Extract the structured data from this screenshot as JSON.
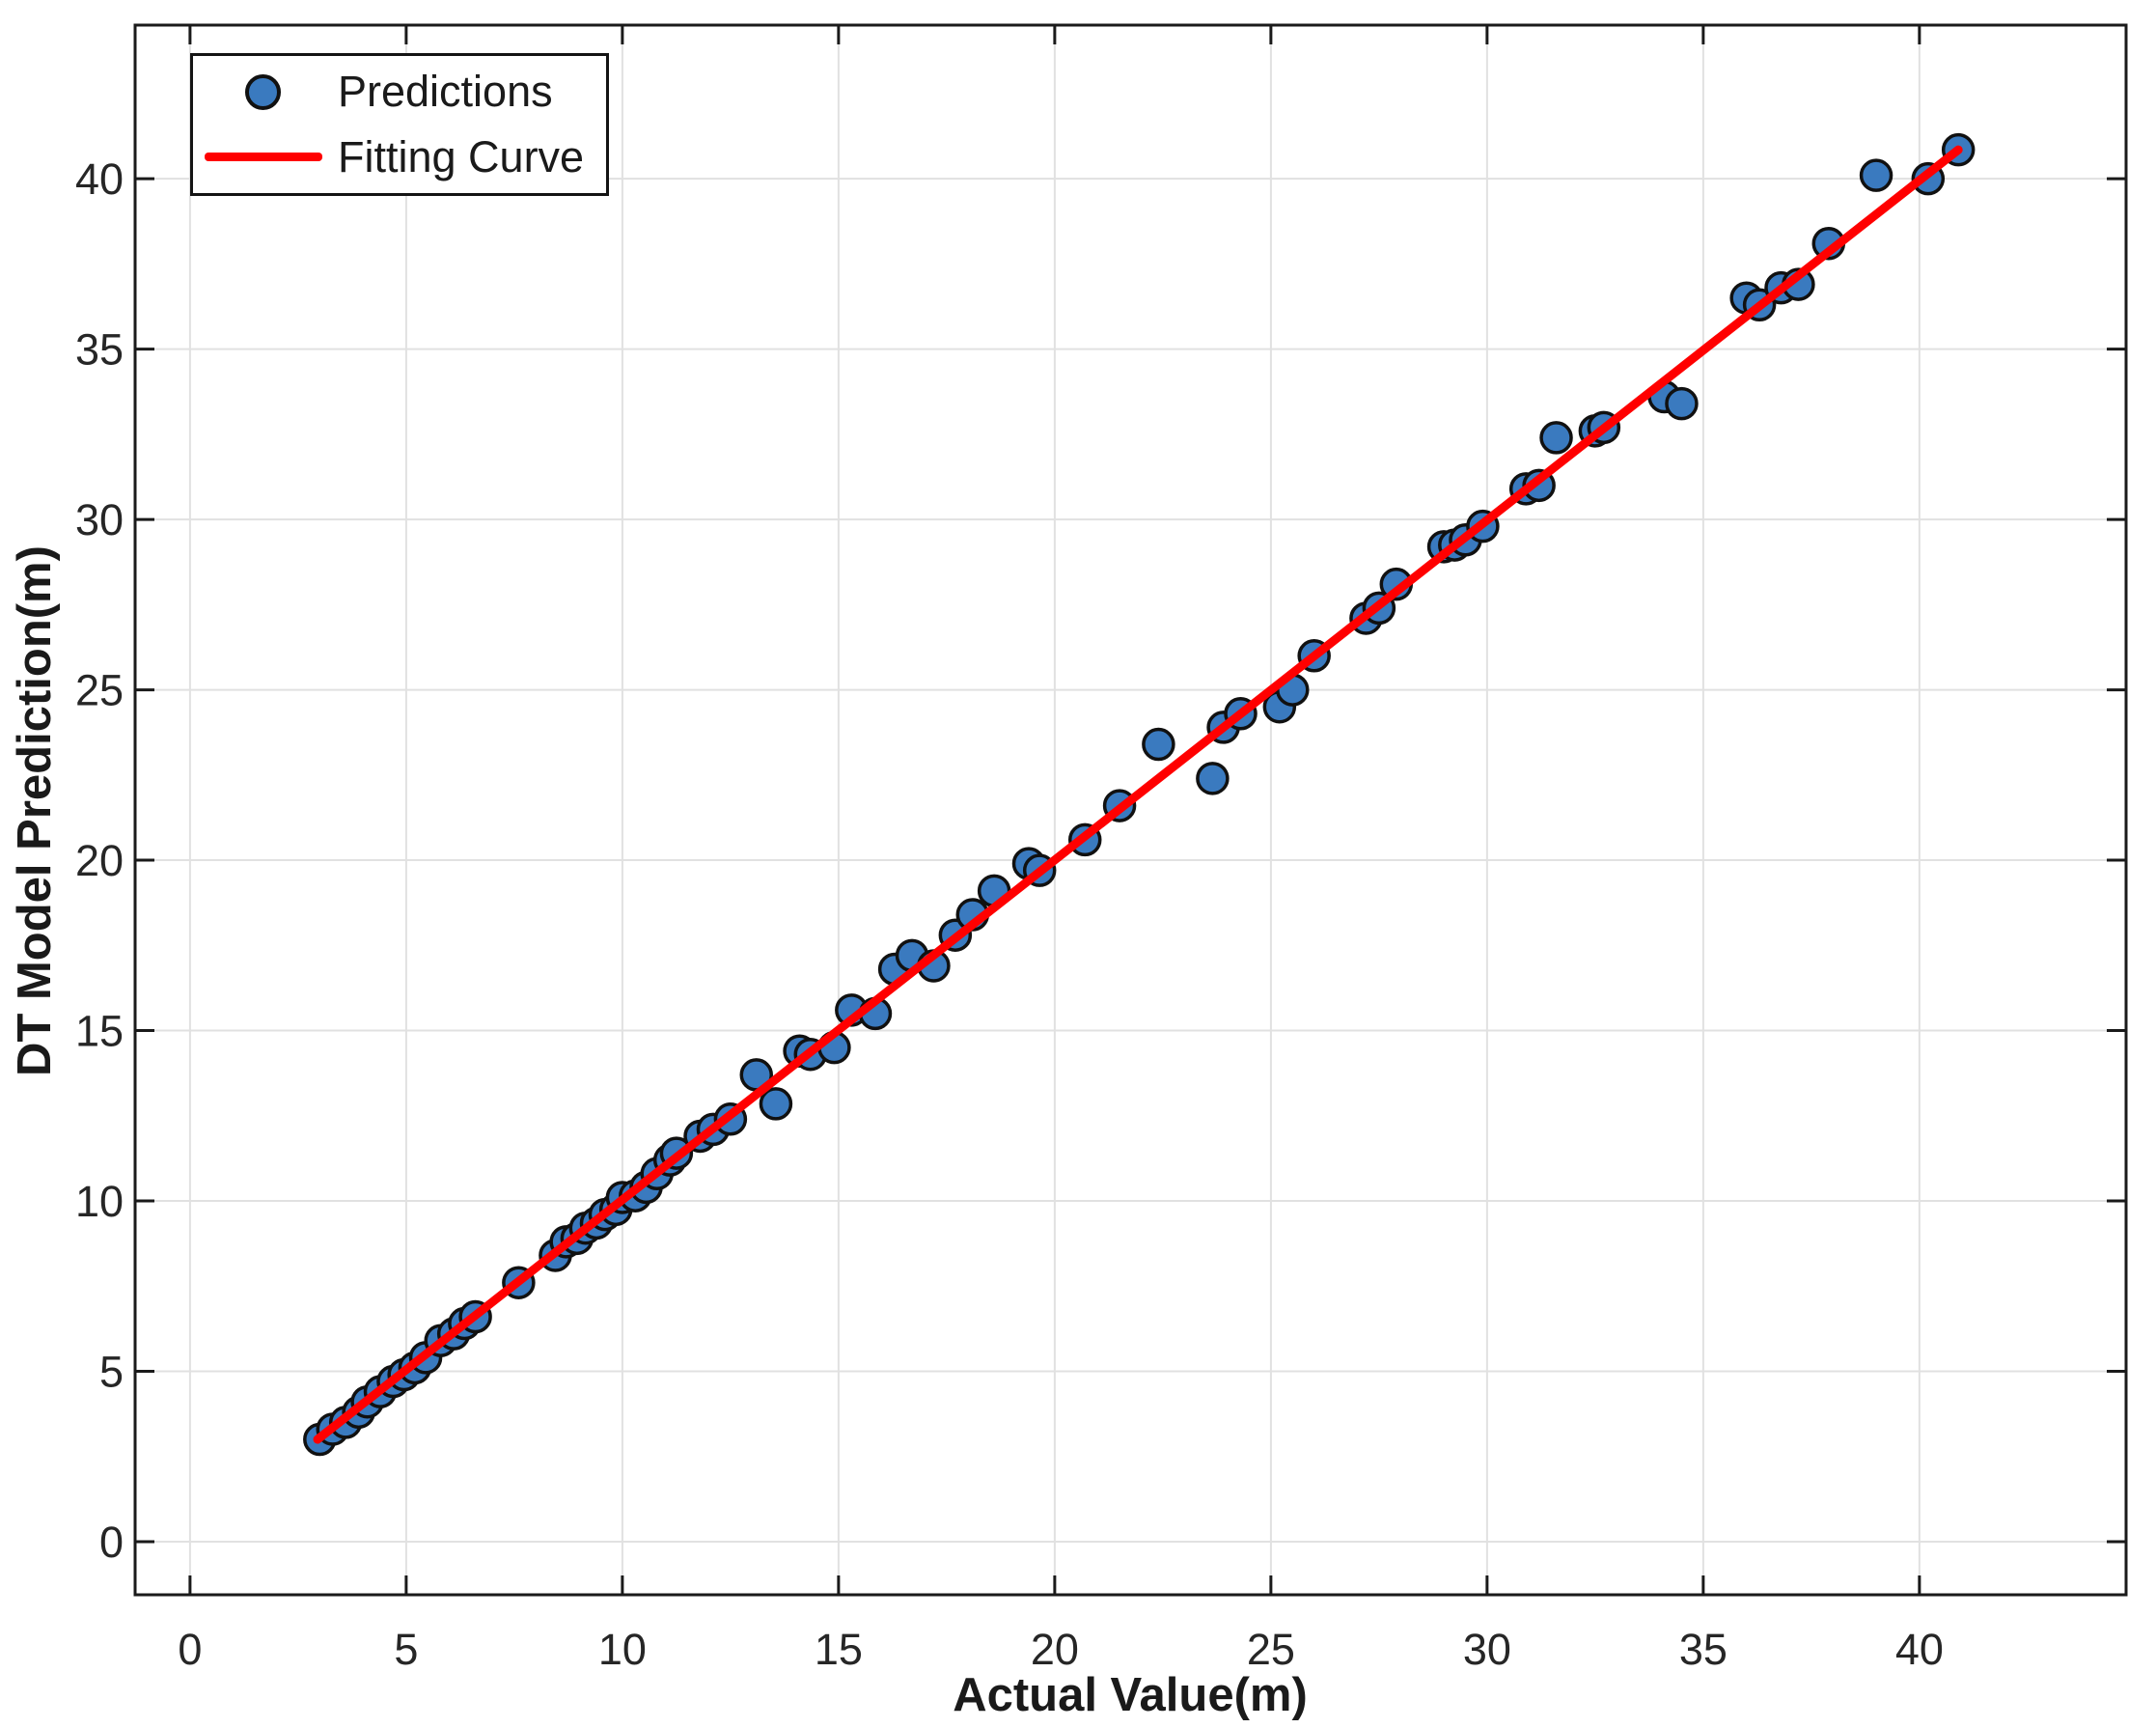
{
  "chart_data": {
    "type": "scatter",
    "title": "",
    "xlabel": "Actual Value(m)",
    "ylabel": "DT Model Prediction(m)",
    "xlim": [
      -1.27,
      44.78
    ],
    "ylim": [
      -1.56,
      44.51
    ],
    "xticks": [
      0,
      5,
      10,
      15,
      20,
      25,
      30,
      35,
      40
    ],
    "yticks": [
      0,
      5,
      10,
      15,
      20,
      25,
      30,
      35,
      40
    ],
    "grid": true,
    "legend_position": "top-left",
    "series": [
      {
        "name": "Predictions",
        "type": "scatter",
        "points": [
          [
            3.0,
            3.0
          ],
          [
            3.3,
            3.3
          ],
          [
            3.6,
            3.5
          ],
          [
            3.9,
            3.8
          ],
          [
            4.1,
            4.1
          ],
          [
            4.4,
            4.4
          ],
          [
            4.7,
            4.7
          ],
          [
            4.95,
            4.9
          ],
          [
            5.2,
            5.1
          ],
          [
            5.45,
            5.4
          ],
          [
            5.8,
            5.9
          ],
          [
            6.1,
            6.1
          ],
          [
            6.35,
            6.4
          ],
          [
            6.6,
            6.6
          ],
          [
            7.6,
            7.6
          ],
          [
            8.45,
            8.4
          ],
          [
            8.7,
            8.8
          ],
          [
            8.95,
            8.9
          ],
          [
            9.15,
            9.2
          ],
          [
            9.4,
            9.35
          ],
          [
            9.6,
            9.6
          ],
          [
            9.85,
            9.75
          ],
          [
            10.0,
            10.1
          ],
          [
            10.3,
            10.15
          ],
          [
            10.55,
            10.4
          ],
          [
            10.8,
            10.8
          ],
          [
            11.1,
            11.2
          ],
          [
            11.25,
            11.4
          ],
          [
            11.8,
            11.9
          ],
          [
            12.1,
            12.1
          ],
          [
            12.5,
            12.4
          ],
          [
            13.1,
            13.7
          ],
          [
            13.55,
            12.85
          ],
          [
            14.1,
            14.4
          ],
          [
            14.35,
            14.3
          ],
          [
            14.9,
            14.5
          ],
          [
            15.3,
            15.6
          ],
          [
            15.85,
            15.5
          ],
          [
            16.3,
            16.8
          ],
          [
            16.7,
            17.2
          ],
          [
            17.2,
            16.9
          ],
          [
            17.7,
            17.8
          ],
          [
            18.1,
            18.4
          ],
          [
            18.6,
            19.1
          ],
          [
            19.4,
            19.9
          ],
          [
            19.65,
            19.7
          ],
          [
            20.7,
            20.6
          ],
          [
            21.5,
            21.6
          ],
          [
            22.4,
            23.4
          ],
          [
            23.65,
            22.4
          ],
          [
            23.9,
            23.9
          ],
          [
            24.3,
            24.3
          ],
          [
            25.2,
            24.5
          ],
          [
            25.5,
            25.0
          ],
          [
            26.0,
            26.0
          ],
          [
            27.2,
            27.1
          ],
          [
            27.5,
            27.4
          ],
          [
            27.9,
            28.1
          ],
          [
            29.0,
            29.2
          ],
          [
            29.25,
            29.25
          ],
          [
            29.5,
            29.4
          ],
          [
            29.9,
            29.8
          ],
          [
            30.9,
            30.9
          ],
          [
            31.2,
            31.0
          ],
          [
            31.6,
            32.4
          ],
          [
            32.5,
            32.6
          ],
          [
            32.7,
            32.7
          ],
          [
            34.1,
            33.6
          ],
          [
            34.5,
            33.4
          ],
          [
            36.0,
            36.5
          ],
          [
            36.3,
            36.3
          ],
          [
            36.8,
            36.8
          ],
          [
            37.2,
            36.9
          ],
          [
            37.9,
            38.1
          ],
          [
            39.0,
            40.1
          ],
          [
            40.2,
            40.0
          ],
          [
            40.9,
            40.85
          ]
        ]
      },
      {
        "name": "Fitting Curve",
        "type": "line",
        "points": [
          [
            2.95,
            3.0
          ],
          [
            40.9,
            40.85
          ]
        ]
      }
    ],
    "colors": {
      "marker_fill": "#3a7abf",
      "marker_edge": "#111111",
      "fit_line": "#ff0000",
      "grid": "#e1e1e1",
      "axis": "#1a1a1a",
      "tick_text": "#262626",
      "label_text": "#1a1a1a"
    }
  },
  "legend": {
    "items": [
      {
        "label": "Predictions",
        "swatch": "marker"
      },
      {
        "label": "Fitting Curve",
        "swatch": "line"
      }
    ]
  }
}
